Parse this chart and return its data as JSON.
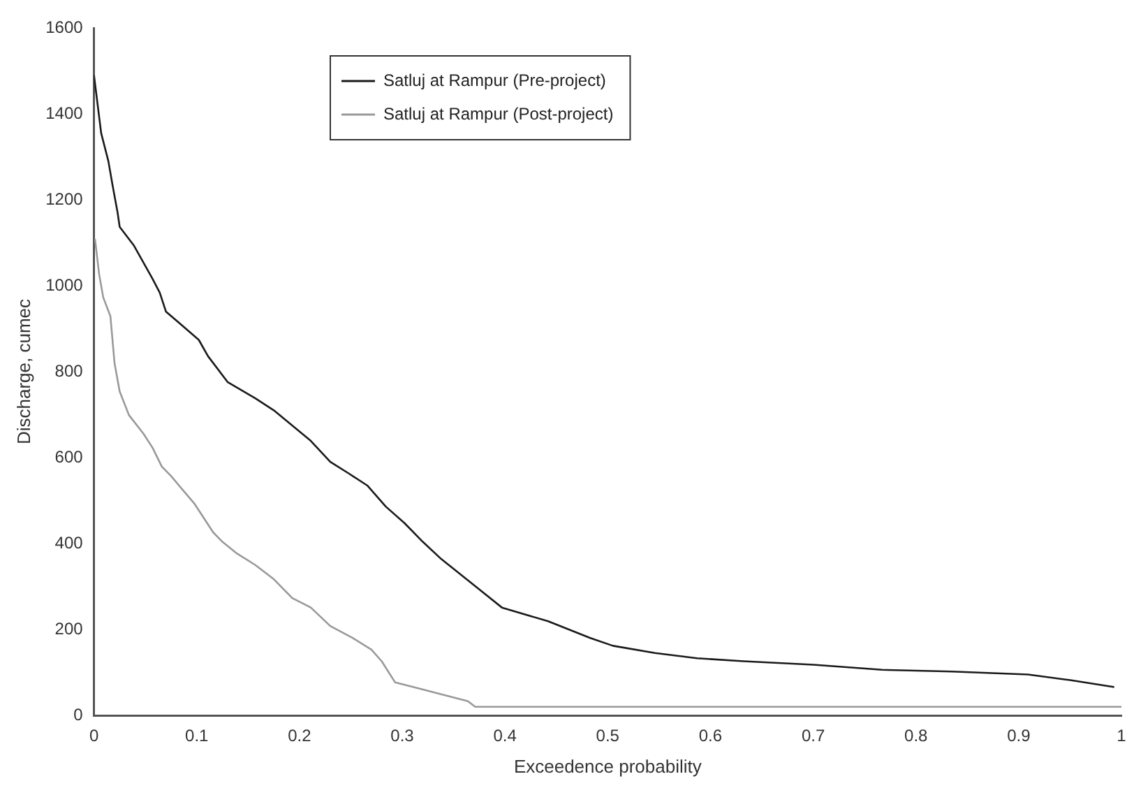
{
  "chart_data": {
    "type": "line",
    "xlabel": "Exceedence probability",
    "ylabel": "Discharge, cumec",
    "xlim": [
      0,
      1
    ],
    "xticks": [
      0,
      0.1,
      0.2,
      0.3,
      0.4,
      0.5,
      0.6,
      0.7,
      0.8,
      0.9,
      1
    ],
    "ylim": [
      0,
      1600
    ],
    "yticks": [
      0,
      200,
      400,
      600,
      800,
      1000,
      1200,
      1400,
      1600
    ],
    "grid": false,
    "legend": "top",
    "marker": "none",
    "line_style": "solid",
    "series": [
      {
        "name": "Satluj at Rampur (Pre-project)",
        "color": "#1a1a1a",
        "x": [
          0,
          0.007,
          0.014,
          0.018,
          0.023,
          0.025,
          0.039,
          0.057,
          0.064,
          0.07,
          0.102,
          0.111,
          0.13,
          0.157,
          0.175,
          0.211,
          0.23,
          0.248,
          0.266,
          0.284,
          0.302,
          0.32,
          0.337,
          0.374,
          0.397,
          0.442,
          0.483,
          0.505,
          0.546,
          0.587,
          0.632,
          0.7,
          0.767,
          0.835,
          0.909,
          0.95,
          0.993
        ],
        "values": [
          1490,
          1355,
          1290,
          1235,
          1170,
          1137,
          1093,
          1016,
          984,
          940,
          874,
          836,
          776,
          738,
          710,
          639,
          590,
          563,
          535,
          486,
          448,
          404,
          366,
          295,
          251,
          219,
          180,
          162,
          145,
          133,
          126,
          118,
          106,
          102,
          95,
          82,
          66
        ]
      },
      {
        "name": "Satluj at Rampur (Post-project)",
        "color": "#999999",
        "x": [
          0.001,
          0.005,
          0.009,
          0.016,
          0.02,
          0.025,
          0.034,
          0.048,
          0.057,
          0.066,
          0.075,
          0.098,
          0.116,
          0.125,
          0.139,
          0.157,
          0.175,
          0.193,
          0.211,
          0.23,
          0.252,
          0.27,
          0.28,
          0.293,
          0.311,
          0.364,
          0.371,
          1
        ],
        "values": [
          1109,
          1027,
          973,
          929,
          820,
          754,
          699,
          656,
          623,
          579,
          557,
          492,
          426,
          404,
          377,
          350,
          317,
          273,
          251,
          208,
          180,
          153,
          126,
          77,
          66,
          33,
          20,
          20
        ]
      }
    ]
  }
}
